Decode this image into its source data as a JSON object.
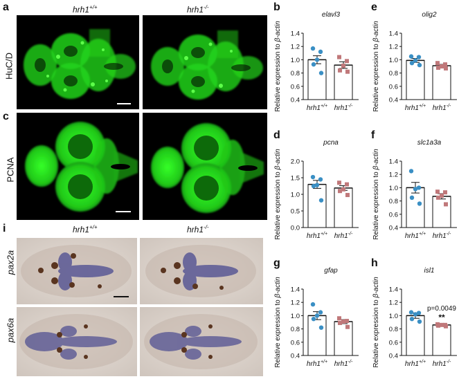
{
  "panels": {
    "a": "a",
    "b": "b",
    "c": "c",
    "d": "d",
    "e": "e",
    "f": "f",
    "g": "g",
    "h": "h",
    "i": "i"
  },
  "images": {
    "wt_label": "hrh1",
    "wt_sup": "+/+",
    "ko_label": "hrh1",
    "ko_sup": "-/-",
    "row_hucd": "HuC/D",
    "row_pcna": "PCNA",
    "row_pax2a": "pax2a",
    "row_pax6a": "pax6a"
  },
  "colors": {
    "fluor_green": "#22d41a",
    "wt_dot": "#3a8fc4",
    "ko_dot": "#c0787a",
    "ish_bg": "#d8cfc8",
    "ish_purple": "#4a4a90",
    "ish_brown": "#5a3520"
  },
  "chart_data": [
    {
      "id": "b",
      "type": "bar",
      "gene": "elavl3",
      "ylabel": "Relative expression to β-actin",
      "categories": [
        "hrh1+/+",
        "hrh1-/-"
      ],
      "ylim": [
        0.4,
        1.4
      ],
      "yticks": [
        "0.4",
        "0.6",
        "0.8",
        "1.0",
        "1.2",
        "1.4"
      ],
      "ytick_vals": [
        0.4,
        0.6,
        0.8,
        1.0,
        1.2,
        1.4
      ],
      "means": [
        1.0,
        0.92
      ],
      "sem": [
        0.06,
        0.05
      ],
      "points": [
        [
          1.17,
          1.12,
          1.0,
          0.93,
          0.8
        ],
        [
          1.04,
          0.98,
          0.91,
          0.84,
          0.82
        ]
      ],
      "annotation": "",
      "stars": ""
    },
    {
      "id": "e",
      "type": "bar",
      "gene": "olig2",
      "ylabel": "Relative expression to β-actin",
      "categories": [
        "hrh1+/+",
        "hrh1-/-"
      ],
      "ylim": [
        0.4,
        1.4
      ],
      "yticks": [
        "0.4",
        "0.6",
        "0.8",
        "1.0",
        "1.2",
        "1.4"
      ],
      "ytick_vals": [
        0.4,
        0.6,
        0.8,
        1.0,
        1.2,
        1.4
      ],
      "means": [
        0.99,
        0.91
      ],
      "sem": [
        0.03,
        0.02
      ],
      "points": [
        [
          1.05,
          1.04,
          0.99,
          0.95,
          0.92
        ],
        [
          0.95,
          0.93,
          0.9,
          0.88,
          0.87
        ]
      ],
      "annotation": "",
      "stars": ""
    },
    {
      "id": "d",
      "type": "bar",
      "gene": "pcna",
      "ylabel": "Relative expression to β-actin",
      "categories": [
        "hrh1+/+",
        "hrh1-/-"
      ],
      "ylim": [
        0.0,
        2.0
      ],
      "yticks": [
        "0.0",
        "0.5",
        "1.0",
        "1.5",
        "2.0"
      ],
      "ytick_vals": [
        0,
        0.5,
        1.0,
        1.5,
        2.0
      ],
      "means": [
        1.3,
        1.19
      ],
      "sem": [
        0.12,
        0.07
      ],
      "points": [
        [
          1.52,
          1.45,
          1.28,
          1.25,
          0.82
        ],
        [
          1.35,
          1.3,
          1.15,
          1.1,
          0.98
        ]
      ],
      "annotation": "",
      "stars": ""
    },
    {
      "id": "f",
      "type": "bar",
      "gene": "slc1a3a",
      "ylabel": "Relative expression to β-actin",
      "categories": [
        "hrh1+/+",
        "hrh1-/-"
      ],
      "ylim": [
        0.4,
        1.4
      ],
      "yticks": [
        "0.4",
        "0.6",
        "0.8",
        "1.0",
        "1.2",
        "1.4"
      ],
      "ytick_vals": [
        0.4,
        0.6,
        0.8,
        1.0,
        1.2,
        1.4
      ],
      "means": [
        1.0,
        0.87
      ],
      "sem": [
        0.08,
        0.04
      ],
      "points": [
        [
          1.25,
          1.0,
          0.98,
          0.85,
          0.76
        ],
        [
          0.94,
          0.93,
          0.88,
          0.85,
          0.75
        ]
      ],
      "annotation": "",
      "stars": ""
    },
    {
      "id": "g",
      "type": "bar",
      "gene": "gfap",
      "ylabel": "Relative expression to β-actin",
      "categories": [
        "hrh1+/+",
        "hrh1-/-"
      ],
      "ylim": [
        0.4,
        1.4
      ],
      "yticks": [
        "0.4",
        "0.6",
        "0.8",
        "1.0",
        "1.2",
        "1.4"
      ],
      "ytick_vals": [
        0.4,
        0.6,
        0.8,
        1.0,
        1.2,
        1.4
      ],
      "means": [
        1.0,
        0.91
      ],
      "sem": [
        0.06,
        0.03
      ],
      "points": [
        [
          1.17,
          1.05,
          1.0,
          0.95,
          0.82
        ],
        [
          0.96,
          0.92,
          0.91,
          0.89,
          0.83
        ]
      ],
      "annotation": "",
      "stars": ""
    },
    {
      "id": "h",
      "type": "bar",
      "gene": "isl1",
      "ylabel": "Relative expression to β-actin",
      "categories": [
        "hrh1+/+",
        "hrh1-/-"
      ],
      "ylim": [
        0.4,
        1.4
      ],
      "yticks": [
        "0.4",
        "0.6",
        "0.8",
        "1.0",
        "1.2",
        "1.4"
      ],
      "ytick_vals": [
        0.4,
        0.6,
        0.8,
        1.0,
        1.2,
        1.4
      ],
      "means": [
        1.0,
        0.86
      ],
      "sem": [
        0.04,
        0.01
      ],
      "points": [
        [
          1.05,
          1.04,
          1.02,
          0.95,
          0.91
        ],
        [
          0.87,
          0.86,
          0.86,
          0.85,
          0.84
        ]
      ],
      "annotation": "p=0.0049",
      "stars": "**"
    }
  ]
}
